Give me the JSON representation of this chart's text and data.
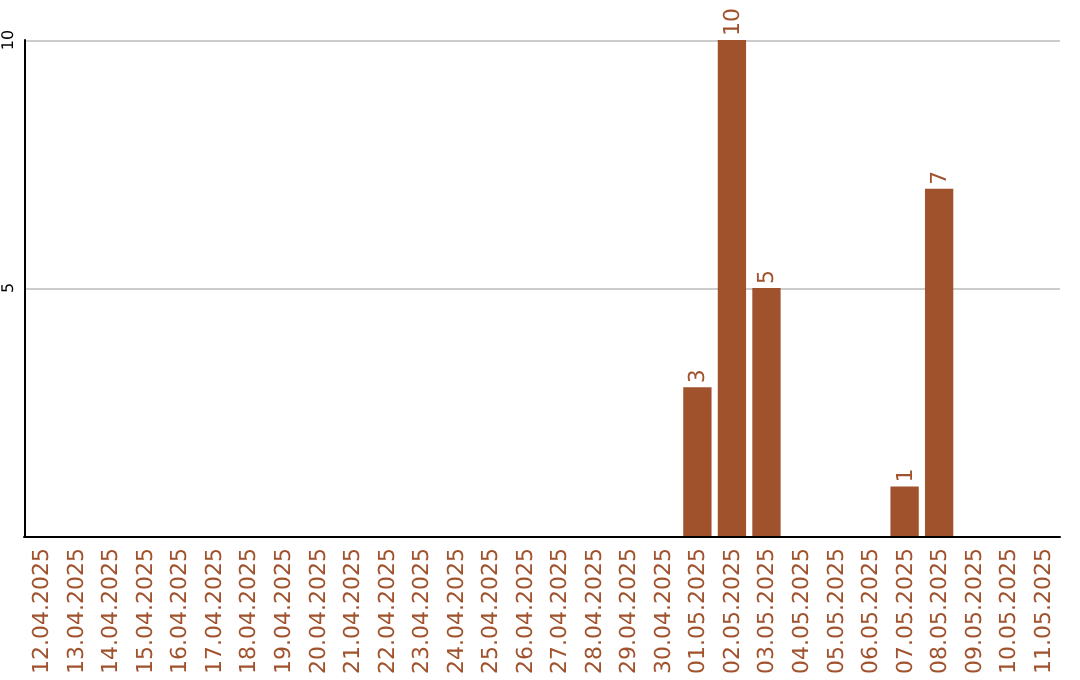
{
  "chart_data": {
    "type": "bar",
    "categories": [
      "12.04.2025",
      "13.04.2025",
      "14.04.2025",
      "15.04.2025",
      "16.04.2025",
      "17.04.2025",
      "18.04.2025",
      "19.04.2025",
      "20.04.2025",
      "21.04.2025",
      "22.04.2025",
      "23.04.2025",
      "24.04.2025",
      "25.04.2025",
      "26.04.2025",
      "27.04.2025",
      "28.04.2025",
      "29.04.2025",
      "30.04.2025",
      "01.05.2025",
      "02.05.2025",
      "03.05.2025",
      "04.05.2025",
      "05.05.2025",
      "06.05.2025",
      "07.05.2025",
      "08.05.2025",
      "09.05.2025",
      "10.05.2025",
      "11.05.2025"
    ],
    "values": [
      0,
      0,
      0,
      0,
      0,
      0,
      0,
      0,
      0,
      0,
      0,
      0,
      0,
      0,
      0,
      0,
      0,
      0,
      0,
      3,
      10,
      5,
      0,
      0,
      0,
      1,
      7,
      0,
      0,
      0
    ],
    "value_labels": [
      null,
      null,
      null,
      null,
      null,
      null,
      null,
      null,
      null,
      null,
      null,
      null,
      null,
      null,
      null,
      null,
      null,
      null,
      null,
      "3",
      "10",
      "5",
      null,
      null,
      null,
      "1",
      "7",
      null,
      null,
      null
    ],
    "color": "#a0522d",
    "ylim": [
      0,
      10
    ],
    "yticks": [
      5,
      10
    ],
    "grid": "y"
  }
}
